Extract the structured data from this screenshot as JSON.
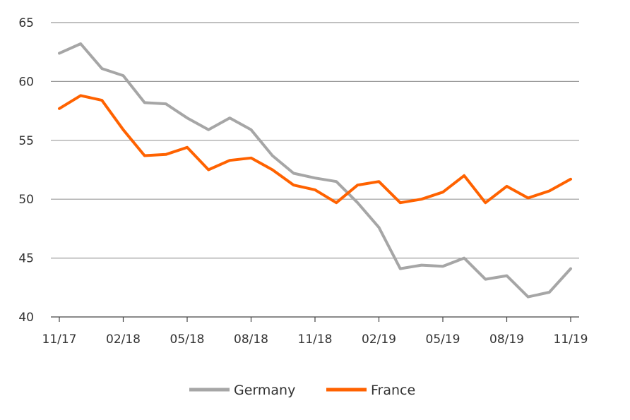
{
  "chart_data": {
    "type": "line",
    "title": "",
    "xlabel": "",
    "ylabel": "",
    "ylim": [
      40,
      65
    ],
    "yticks": [
      40,
      45,
      50,
      55,
      60,
      65
    ],
    "x_ticks": [
      "11/17",
      "02/18",
      "05/18",
      "08/18",
      "11/18",
      "02/19",
      "05/19",
      "08/19",
      "11/19"
    ],
    "x": [
      "11/17",
      "12/17",
      "01/18",
      "02/18",
      "03/18",
      "04/18",
      "05/18",
      "06/18",
      "07/18",
      "08/18",
      "09/18",
      "10/18",
      "11/18",
      "12/18",
      "01/19",
      "02/19",
      "03/19",
      "04/19",
      "05/19",
      "06/19",
      "07/19",
      "08/19",
      "09/19",
      "10/19",
      "11/19"
    ],
    "grid": "horizontal",
    "legend": "bottom",
    "series": [
      {
        "name": "Germany",
        "color": "#a6a6a6",
        "values": [
          62.4,
          63.2,
          61.1,
          60.5,
          58.2,
          58.1,
          56.9,
          55.9,
          56.9,
          55.9,
          53.7,
          52.2,
          51.8,
          51.5,
          49.7,
          47.6,
          44.1,
          44.4,
          44.3,
          45.0,
          43.2,
          43.5,
          41.7,
          42.1,
          44.1
        ]
      },
      {
        "name": "France",
        "color": "#ff6200",
        "values": [
          57.7,
          58.8,
          58.4,
          55.9,
          53.7,
          53.8,
          54.4,
          52.5,
          53.3,
          53.5,
          52.5,
          51.2,
          50.8,
          49.7,
          51.2,
          51.5,
          49.7,
          50.0,
          50.6,
          52.0,
          49.7,
          51.1,
          50.1,
          50.7,
          51.7
        ]
      }
    ]
  }
}
